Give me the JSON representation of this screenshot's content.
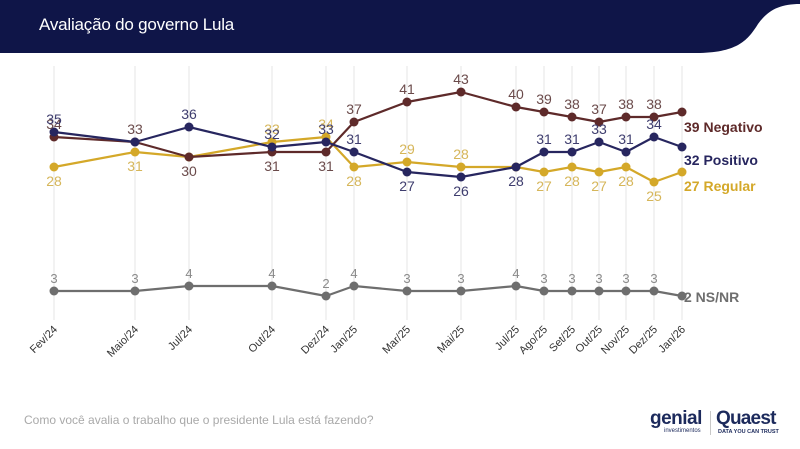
{
  "header": {
    "title": "Avaliação do governo Lula"
  },
  "footer": {
    "question": "Como você avalia o trabalho que o presidente Lula está fazendo?",
    "logo_genial": "genial",
    "logo_genial_sub": "investimentos",
    "logo_quaest": "Quaest",
    "logo_quaest_sub": "DATA YOU CAN TRUST"
  },
  "colors": {
    "header_bg": "#0f1548",
    "negativo": "#5e2a2a",
    "positivo": "#27265f",
    "regular": "#d4a829",
    "nsnr": "#6e6e6e",
    "gridline": "#e4e4e4"
  },
  "chart_data": {
    "type": "line",
    "title": "Avaliação do governo Lula",
    "xlabel": "",
    "ylabel": "",
    "grid": "vertical",
    "legend": "right-end labels",
    "categories": [
      "Fev/24",
      "Maio/24",
      "Jul/24",
      "Out/24",
      "Dez/24",
      "Jan/25",
      "Mar/25",
      "Mai/25",
      "Jul/25",
      "Ago/25",
      "Set/25",
      "Out/25",
      "Nov/25",
      "Dez/25",
      "Jan/26"
    ],
    "series": [
      {
        "name": "Negativo",
        "end_label": "39 Negativo",
        "values": [
          34,
          33,
          30,
          31,
          31,
          37,
          41,
          43,
          40,
          39,
          38,
          37,
          38,
          38,
          39
        ]
      },
      {
        "name": "Positivo",
        "end_label": "32 Positivo",
        "values": [
          35,
          33,
          36,
          32,
          33,
          31,
          27,
          26,
          28,
          31,
          31,
          33,
          31,
          34,
          32
        ]
      },
      {
        "name": "Regular",
        "end_label": "27 Regular",
        "values": [
          28,
          31,
          30,
          33,
          34,
          28,
          29,
          28,
          28,
          27,
          28,
          27,
          28,
          25,
          27
        ]
      },
      {
        "name": "NS/NR",
        "end_label": "2 NS/NR",
        "values": [
          3,
          3,
          4,
          4,
          2,
          4,
          3,
          3,
          4,
          3,
          3,
          3,
          3,
          3,
          2
        ]
      }
    ]
  }
}
